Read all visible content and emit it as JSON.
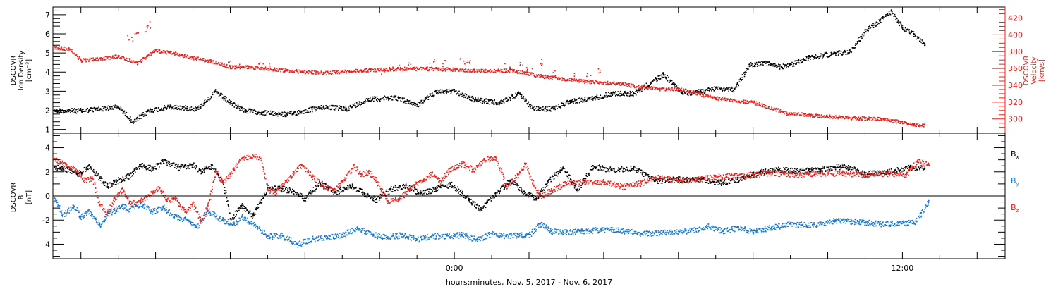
{
  "chart_data": {
    "type": "scatter",
    "xlabel": "hours:minutes, Nov.  5, 2017 - Nov.  6, 2017",
    "x_unit": "hours relative to 2017-11-06 00:00",
    "x_range": [
      -10.75,
      14.75
    ],
    "x_ticks": [
      {
        "value": 0,
        "label": "0:00"
      },
      {
        "value": 12,
        "label": "12:00"
      }
    ],
    "panels": [
      {
        "id": "top",
        "ylabel_left": [
          "DSCOVR",
          "Ion Density",
          "[cm⁻³]"
        ],
        "ylabel_right": [
          "DSCOVR",
          "Velocity",
          "[km/s]"
        ],
        "ylim_left": [
          0.8,
          7.4
        ],
        "yticks_left": [
          1,
          2,
          3,
          4,
          5,
          6,
          7
        ],
        "ylim_right": [
          283,
          433
        ],
        "yticks_right": [
          300,
          320,
          340,
          360,
          380,
          400,
          420
        ],
        "series": [
          {
            "name": "Ion Density",
            "axis": "left",
            "color": "#000000",
            "x": [
              -10.7,
              -10.0,
              -9.0,
              -8.6,
              -8.2,
              -7.6,
              -6.9,
              -6.4,
              -6.0,
              -5.6,
              -5.1,
              -4.5,
              -4.0,
              -3.5,
              -2.9,
              -2.3,
              -1.6,
              -1.0,
              -0.5,
              0.0,
              0.5,
              1.2,
              1.7,
              2.1,
              2.6,
              3.1,
              3.6,
              4.2,
              4.8,
              5.6,
              6.1,
              6.6,
              7.0,
              7.5,
              7.9,
              8.3,
              8.7,
              9.0,
              9.5,
              10.2,
              10.6,
              11.0,
              11.4,
              11.7,
              12.0,
              12.3,
              12.6
            ],
            "y": [
              2.0,
              2.0,
              2.2,
              1.4,
              2.0,
              2.2,
              2.1,
              3.0,
              2.4,
              2.0,
              1.9,
              1.8,
              2.0,
              2.2,
              2.1,
              2.6,
              2.7,
              2.3,
              3.0,
              3.0,
              2.6,
              2.4,
              2.9,
              2.1,
              2.1,
              2.5,
              2.6,
              2.9,
              2.9,
              3.9,
              2.9,
              3.0,
              3.2,
              3.1,
              4.4,
              4.5,
              4.3,
              4.4,
              4.8,
              5.0,
              5.1,
              6.2,
              6.7,
              7.2,
              6.3,
              6.0,
              5.4
            ]
          },
          {
            "name": "Velocity",
            "axis": "right",
            "color": "#e8211c",
            "x": [
              -10.7,
              -10.3,
              -10.0,
              -9.5,
              -9.0,
              -8.5,
              -8.0,
              -7.5,
              -7.0,
              -6.5,
              -6.0,
              -5.5,
              -4.5,
              -3.5,
              -2.5,
              -1.5,
              -0.5,
              0.5,
              1.5,
              2.5,
              3.5,
              4.5,
              5.0,
              5.5,
              6.0,
              7.0,
              8.0,
              8.6,
              8.9,
              9.5,
              10.5,
              11.5,
              12.3,
              12.6
            ],
            "y": [
              386,
              383,
              370,
              372,
              375,
              367,
              382,
              378,
              373,
              369,
              362,
              362,
              358,
              355,
              358,
              360,
              360,
              358,
              358,
              350,
              345,
              342,
              338,
              336,
              336,
              325,
              320,
              312,
              307,
              305,
              302,
              300,
              294,
              293
            ]
          },
          {
            "name": "Velocity (outliers)",
            "axis": "right",
            "color": "#e8211c",
            "x": [
              -8.7,
              -8.5,
              -8.3,
              -8.2,
              -6.0,
              -5.8,
              -5.2,
              -4.9,
              -1.9,
              -1.7,
              -1.5,
              -1.2,
              -0.6,
              -0.3,
              0.2,
              0.4,
              1.4,
              1.8,
              2.0,
              2.3,
              2.4,
              2.7,
              3.2,
              3.6,
              3.9
            ],
            "y": [
              396,
              402,
              408,
              412,
              365,
              362,
              366,
              362,
              356,
              358,
              364,
              363,
              369,
              366,
              370,
              368,
              363,
              365,
              361,
              368,
              352,
              355,
              352,
              351,
              357
            ]
          }
        ]
      },
      {
        "id": "bottom",
        "ylabel_left": [
          "DSCOVR",
          "B",
          "[nT]"
        ],
        "ylim": [
          -5.2,
          5.2
        ],
        "yticks": [
          -4,
          -2,
          0,
          2,
          4
        ],
        "zero_line": true,
        "series": [
          {
            "name": "Bx",
            "legend_base": "B",
            "legend_sub": "x",
            "color": "#000000",
            "x": [
              -10.7,
              -10.3,
              -10.1,
              -9.8,
              -9.5,
              -9.3,
              -9.1,
              -8.7,
              -8.4,
              -8.1,
              -7.8,
              -7.4,
              -7.0,
              -6.8,
              -6.5,
              -6.2,
              -6.0,
              -5.7,
              -5.4,
              -5.0,
              -4.6,
              -4.3,
              -4.0,
              -3.6,
              -3.2,
              -2.8,
              -2.4,
              -2.1,
              -1.7,
              -1.3,
              -0.9,
              -0.5,
              -0.1,
              0.4,
              0.7,
              1.1,
              1.5,
              1.8,
              2.2,
              2.5,
              2.9,
              3.3,
              3.7,
              4.2,
              4.8,
              5.4,
              6.0,
              6.6,
              7.2,
              7.8,
              8.2,
              8.7,
              9.2,
              9.8,
              10.4,
              11.0,
              11.6,
              12.2,
              12.6
            ],
            "y": [
              2.4,
              2.2,
              1.8,
              2.5,
              1.5,
              0.8,
              1.2,
              1.7,
              2.6,
              2.3,
              2.9,
              2.4,
              2.6,
              2.1,
              2.5,
              1.2,
              -1.9,
              -0.8,
              -1.6,
              0.7,
              0.6,
              0.4,
              -0.2,
              1.1,
              0.3,
              0.9,
              0.2,
              -0.3,
              0.6,
              0.9,
              0.2,
              0.6,
              1.0,
              -0.3,
              -1.1,
              0.2,
              1.3,
              0.5,
              -0.2,
              1.2,
              2.3,
              0.5,
              2.5,
              2.2,
              2.3,
              1.3,
              1.4,
              1.4,
              1.1,
              1.6,
              2.0,
              2.2,
              2.1,
              2.2,
              2.5,
              1.9,
              2.0,
              2.4,
              2.3
            ]
          },
          {
            "name": "By",
            "legend_base": "B",
            "legend_sub": "y",
            "color": "#1478d2",
            "x": [
              -10.7,
              -10.5,
              -10.2,
              -10.0,
              -9.8,
              -9.5,
              -9.3,
              -9.1,
              -8.9,
              -8.7,
              -8.4,
              -8.1,
              -7.8,
              -7.5,
              -7.2,
              -6.9,
              -6.6,
              -6.2,
              -5.9,
              -5.7,
              -5.3,
              -5.0,
              -4.6,
              -4.2,
              -3.8,
              -3.4,
              -3.0,
              -2.6,
              -2.2,
              -1.8,
              -1.4,
              -1.0,
              -0.6,
              -0.2,
              0.2,
              0.6,
              1.0,
              1.4,
              1.8,
              2.0,
              2.3,
              2.6,
              3.0,
              3.4,
              3.8,
              4.4,
              5.0,
              5.6,
              6.2,
              6.8,
              7.2,
              7.6,
              8.0,
              8.5,
              9.0,
              9.6,
              10.2,
              10.8,
              11.4,
              11.9,
              12.3,
              12.5,
              12.7
            ],
            "y": [
              -0.2,
              -1.6,
              -0.8,
              -1.7,
              -1.2,
              -2.4,
              -1.5,
              -1.2,
              -0.8,
              -1.1,
              -0.6,
              -1.3,
              -0.9,
              -1.7,
              -1.9,
              -2.6,
              -1.2,
              -2.0,
              -2.3,
              -1.7,
              -2.5,
              -3.3,
              -3.3,
              -4.0,
              -3.5,
              -3.4,
              -3.2,
              -2.6,
              -3.2,
              -3.4,
              -3.2,
              -3.6,
              -3.3,
              -3.3,
              -3.2,
              -3.6,
              -3.1,
              -3.3,
              -3.2,
              -3.2,
              -2.3,
              -2.9,
              -3.0,
              -2.9,
              -2.8,
              -2.8,
              -3.1,
              -3.0,
              -2.9,
              -2.5,
              -2.9,
              -2.6,
              -2.9,
              -2.6,
              -2.3,
              -2.4,
              -2.0,
              -2.1,
              -2.3,
              -2.2,
              -2.2,
              -1.4,
              -0.4
            ]
          },
          {
            "name": "Bz",
            "legend_base": "B",
            "legend_sub": "z",
            "color": "#e8211c",
            "x": [
              -10.7,
              -10.4,
              -10.1,
              -9.9,
              -9.7,
              -9.5,
              -9.3,
              -9.1,
              -8.9,
              -8.7,
              -8.4,
              -8.1,
              -7.9,
              -7.7,
              -7.5,
              -7.2,
              -7.0,
              -6.8,
              -6.6,
              -6.4,
              -6.2,
              -6.0,
              -5.9,
              -5.7,
              -5.4,
              -5.2,
              -5.0,
              -4.8,
              -4.5,
              -4.3,
              -4.1,
              -3.8,
              -3.5,
              -3.2,
              -3.0,
              -2.7,
              -2.5,
              -2.3,
              -2.1,
              -1.8,
              -1.5,
              -1.2,
              -0.9,
              -0.6,
              -0.4,
              -0.1,
              0.2,
              0.5,
              0.8,
              1.1,
              1.4,
              1.7,
              1.9,
              2.1,
              2.3,
              2.6,
              3.0,
              3.5,
              4.0,
              4.5,
              5.0,
              5.5,
              6.0,
              6.5,
              7.0,
              7.5,
              8.0,
              8.4,
              8.8,
              9.2,
              9.8,
              10.4,
              11.0,
              11.6,
              12.1,
              12.4,
              12.7
            ],
            "y": [
              3.1,
              2.6,
              2.0,
              1.3,
              1.5,
              -0.7,
              -1.4,
              -0.2,
              0.6,
              -0.6,
              -0.4,
              0.3,
              0.7,
              -0.3,
              -0.2,
              -1.3,
              -0.6,
              -2.1,
              -0.8,
              2.0,
              1.2,
              1.8,
              2.3,
              3.1,
              3.4,
              3.1,
              0.6,
              0.3,
              1.3,
              2.0,
              2.6,
              1.6,
              0.8,
              0.5,
              1.2,
              2.5,
              1.8,
              2.0,
              1.3,
              -0.4,
              -0.3,
              0.6,
              1.3,
              1.9,
              1.2,
              2.3,
              2.7,
              2.2,
              3.0,
              3.2,
              0.8,
              1.8,
              2.7,
              1.0,
              0.0,
              0.5,
              1.1,
              1.2,
              1.2,
              0.8,
              1.1,
              1.6,
              1.3,
              1.4,
              1.6,
              1.7,
              1.8,
              1.9,
              1.9,
              1.8,
              1.9,
              1.9,
              1.8,
              1.9,
              1.8,
              2.9,
              2.6
            ]
          }
        ]
      }
    ]
  }
}
